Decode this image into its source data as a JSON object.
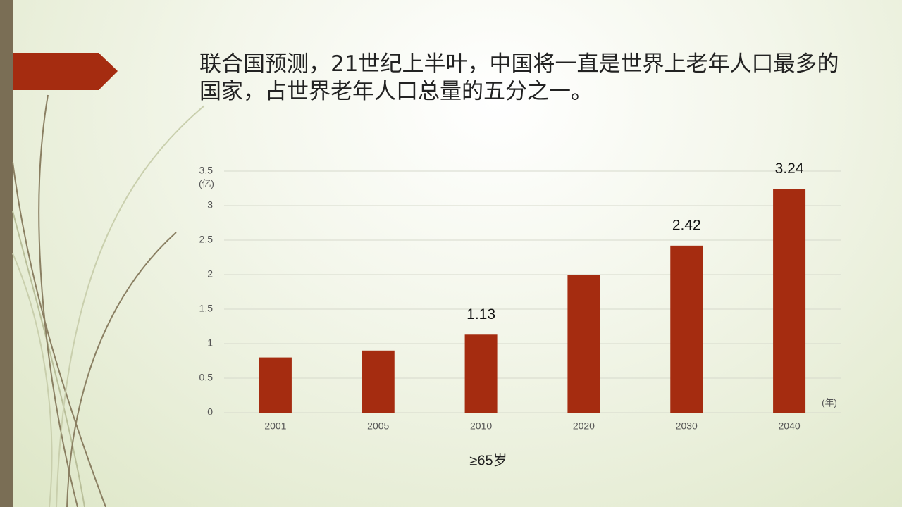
{
  "chart_data": {
    "type": "bar",
    "title": "联合国预测，21世纪上半叶，中国将一直是世界上老年人口最多的国家，占世界老年人口总量的五分之一。",
    "y_label": "(亿)",
    "x_label": "(年)",
    "categories": [
      "2001",
      "2005",
      "2010",
      "2020",
      "2030",
      "2040"
    ],
    "series": [
      {
        "name": "≥65岁",
        "color": "#a52c10",
        "values": [
          0.8,
          0.9,
          1.13,
          2.0,
          2.42,
          3.24
        ],
        "value_labels": [
          null,
          null,
          "1.13",
          null,
          "2.42",
          "3.24"
        ]
      }
    ],
    "ylim": [
      0,
      3.5
    ],
    "yticks": [
      0,
      0.5,
      1,
      1.5,
      2,
      2.5,
      3,
      3.5
    ],
    "grid": true
  }
}
